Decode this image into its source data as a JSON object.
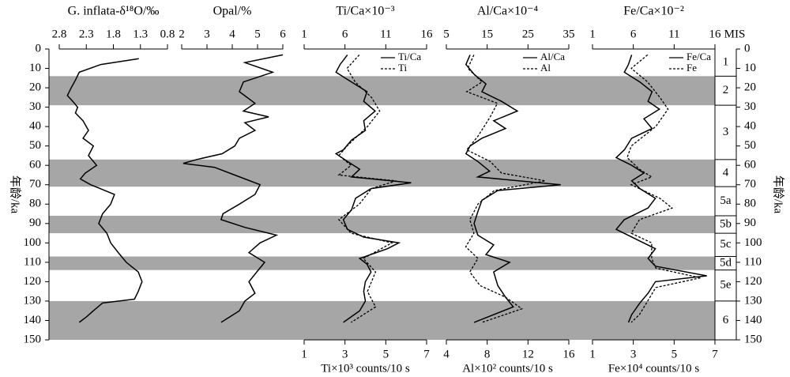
{
  "chart_data": {
    "type": "line",
    "ylabel": "年龄/ka",
    "ylim": [
      0,
      150
    ],
    "yticks": [
      0,
      10,
      20,
      30,
      40,
      50,
      60,
      70,
      80,
      90,
      100,
      110,
      120,
      130,
      140,
      150
    ],
    "mis_label": "MIS",
    "mis": [
      {
        "label": "1",
        "range": [
          0,
          14
        ],
        "shaded": false
      },
      {
        "label": "2",
        "range": [
          14,
          29
        ],
        "shaded": true
      },
      {
        "label": "3",
        "range": [
          29,
          57
        ],
        "shaded": false
      },
      {
        "label": "4",
        "range": [
          57,
          71
        ],
        "shaded": true
      },
      {
        "label": "5a",
        "range": [
          71,
          86
        ],
        "shaded": false
      },
      {
        "label": "5b",
        "range": [
          86,
          95
        ],
        "shaded": true
      },
      {
        "label": "5c",
        "range": [
          95,
          107
        ],
        "shaded": false
      },
      {
        "label": "5d",
        "range": [
          107,
          114
        ],
        "shaded": true
      },
      {
        "label": "5e",
        "range": [
          114,
          130
        ],
        "shaded": false
      },
      {
        "label": "6",
        "range": [
          130,
          150
        ],
        "shaded": true
      }
    ],
    "band_color": "#a6a6a6",
    "panels": [
      {
        "title": "G. inflata-δ¹⁸O/‰",
        "xlim": [
          2.8,
          0.8
        ],
        "xticks": [
          2.8,
          2.3,
          1.8,
          1.3,
          0.8
        ],
        "series": [
          {
            "color": "#000",
            "dashed": false,
            "ages": [
              5,
              8,
              12,
              16,
              20,
              24,
              27,
              30,
              33,
              37,
              42,
              46,
              50,
              55,
              60,
              64,
              67,
              70,
              75,
              80,
              85,
              90,
              95,
              100,
              105,
              110,
              115,
              120,
              125,
              129,
              131,
              135,
              138,
              141
            ],
            "values": [
              1.33,
              2.03,
              2.43,
              2.5,
              2.58,
              2.65,
              2.55,
              2.46,
              2.5,
              2.36,
              2.26,
              2.36,
              2.17,
              2.26,
              2.11,
              2.32,
              2.41,
              2.22,
              1.78,
              1.85,
              2.0,
              2.07,
              1.92,
              1.85,
              1.71,
              1.56,
              1.34,
              1.27,
              1.34,
              1.41,
              2.0,
              2.17,
              2.29,
              2.43
            ]
          }
        ]
      },
      {
        "title": "Opal/%",
        "xlim": [
          2,
          6
        ],
        "xticks": [
          2,
          3,
          4,
          5,
          6
        ],
        "series": [
          {
            "color": "#000",
            "dashed": false,
            "ages": [
              3,
              7,
              12,
              17,
              22,
              28,
              32,
              35,
              38,
              42,
              46,
              50,
              54,
              57,
              59,
              61,
              65,
              70,
              75,
              80,
              85,
              88,
              92,
              96,
              100,
              105,
              110,
              115,
              120,
              126,
              130,
              135,
              141
            ],
            "values": [
              6.0,
              4.5,
              5.6,
              4.44,
              4.28,
              4.9,
              4.44,
              5.44,
              4.5,
              4.9,
              4.28,
              4.1,
              3.6,
              2.6,
              2.06,
              3.3,
              4.1,
              5.1,
              4.9,
              4.28,
              3.63,
              3.56,
              4.5,
              5.75,
              5.1,
              4.66,
              5.28,
              4.97,
              4.66,
              4.9,
              4.5,
              4.28,
              3.56
            ]
          }
        ]
      },
      {
        "title": "Ti/Ca×10⁻³",
        "xlim": [
          1,
          16
        ],
        "xticks": [
          1,
          6,
          11,
          16
        ],
        "x2label": "Ti×10³ counts/10 s",
        "x2lim": [
          1,
          7
        ],
        "x2ticks": [
          1,
          3,
          5,
          7
        ],
        "series": [
          {
            "name": "Ti/Ca",
            "color": "#000",
            "dashed": false,
            "ages": [
              3,
              8,
              12,
              17,
              22,
              27,
              32,
              37,
              42,
              47,
              52,
              54,
              58,
              62,
              66,
              69,
              72,
              77,
              83,
              88,
              93,
              97,
              100,
              103,
              108,
              111,
              115,
              120,
              125,
              130,
              135,
              141
            ],
            "values": [
              6.3,
              5.4,
              4.9,
              6.8,
              8.7,
              8.3,
              9.7,
              8.3,
              8.5,
              6.8,
              5.8,
              4.9,
              6.3,
              7.8,
              6.8,
              14.1,
              9.2,
              7.3,
              6.8,
              5.8,
              6.3,
              8.3,
              12.6,
              11.2,
              7.8,
              8.7,
              9.2,
              8.5,
              8.3,
              8.5,
              7.8,
              5.8
            ]
          },
          {
            "name": "Ti",
            "color": "#000",
            "dashed": true,
            "axis": "x2",
            "ages": [
              3,
              10,
              17,
              25,
              32,
              40,
              50,
              55,
              60,
              65,
              68,
              72,
              80,
              88,
              95,
              100,
              108,
              115,
              125,
              133,
              141
            ],
            "values": [
              3.7,
              3.1,
              3.5,
              4.3,
              4.7,
              4.1,
              3.1,
              2.7,
              3.3,
              2.7,
              5.5,
              4.3,
              3.7,
              2.7,
              3.3,
              5.3,
              3.9,
              4.5,
              4.1,
              4.5,
              3.3
            ]
          }
        ]
      },
      {
        "title": "Al/Ca×10⁻⁴",
        "xlim": [
          5,
          35
        ],
        "xticks": [
          5,
          15,
          25,
          35
        ],
        "x2label": "Al×10² counts/10 s",
        "x2lim": [
          4,
          16
        ],
        "x2ticks": [
          4,
          8,
          12,
          16
        ],
        "series": [
          {
            "name": "Al/Ca",
            "color": "#000",
            "dashed": false,
            "ages": [
              3,
              8,
              13,
              18,
              22,
              27,
              32,
              37,
              41,
              46,
              50,
              54,
              58,
              63,
              66,
              70,
              73,
              78,
              84,
              90,
              96,
              101,
              106,
              110,
              115,
              122,
              128,
              133,
              141
            ],
            "values": [
              10.8,
              9.8,
              11.8,
              14.7,
              13.7,
              18.5,
              22.4,
              16.6,
              19.5,
              13.7,
              10.8,
              9.8,
              12.7,
              15.6,
              12.7,
              33.0,
              17.6,
              13.7,
              12.7,
              11.8,
              12.7,
              16.6,
              14.7,
              20.5,
              16.6,
              17.6,
              19.5,
              21.4,
              11.8
            ]
          },
          {
            "name": "Al",
            "color": "#000",
            "dashed": true,
            "axis": "x2",
            "ages": [
              3,
              10,
              17,
              22,
              28,
              35,
              45,
              52,
              58,
              64,
              68,
              73,
              80,
              88,
              95,
              102,
              108,
              115,
              122,
              128,
              134,
              141
            ],
            "values": [
              6.7,
              6.1,
              7.5,
              6.0,
              9.0,
              8.3,
              7.1,
              6.0,
              8.3,
              9.4,
              13.7,
              8.7,
              7.1,
              6.3,
              6.7,
              5.9,
              7.1,
              6.3,
              7.3,
              9.8,
              11.4,
              7.5
            ]
          }
        ]
      },
      {
        "title": "Fe/Ca×10⁻²",
        "xlim": [
          1,
          16
        ],
        "xticks": [
          1,
          6,
          11,
          16
        ],
        "x2label": "Fe×10⁴ counts/10 s",
        "x2lim": [
          1,
          7
        ],
        "x2ticks": [
          1,
          3,
          5,
          7
        ],
        "series": [
          {
            "name": "Fe/Ca",
            "color": "#000",
            "dashed": false,
            "ages": [
              3,
              8,
              12,
              17,
              22,
              27,
              31,
              36,
              41,
              46,
              52,
              56,
              60,
              64,
              68,
              72,
              77,
              82,
              88,
              93,
              98,
              103,
              108,
              112,
              117,
              120,
              126,
              131,
              137,
              141
            ],
            "values": [
              5.8,
              5.4,
              4.9,
              6.8,
              8.3,
              7.8,
              9.2,
              7.3,
              8.3,
              5.8,
              4.9,
              3.9,
              5.8,
              7.3,
              5.8,
              6.8,
              8.7,
              7.8,
              4.9,
              3.9,
              6.3,
              8.7,
              7.8,
              8.7,
              15.0,
              8.7,
              7.8,
              6.8,
              5.8,
              5.4
            ]
          },
          {
            "name": "Fe",
            "color": "#000",
            "dashed": true,
            "axis": "x2",
            "ages": [
              3,
              10,
              17,
              25,
              31,
              40,
              50,
              56,
              62,
              66,
              70,
              77,
              82,
              88,
              95,
              100,
              108,
              113,
              118,
              123,
              130,
              137,
              141
            ],
            "values": [
              3.7,
              2.9,
              3.7,
              4.3,
              4.7,
              4.1,
              2.9,
              2.7,
              3.3,
              3.9,
              2.9,
              4.3,
              4.9,
              3.3,
              2.9,
              3.9,
              3.9,
              4.1,
              6.3,
              4.1,
              3.7,
              3.3,
              2.9
            ]
          }
        ]
      }
    ]
  }
}
